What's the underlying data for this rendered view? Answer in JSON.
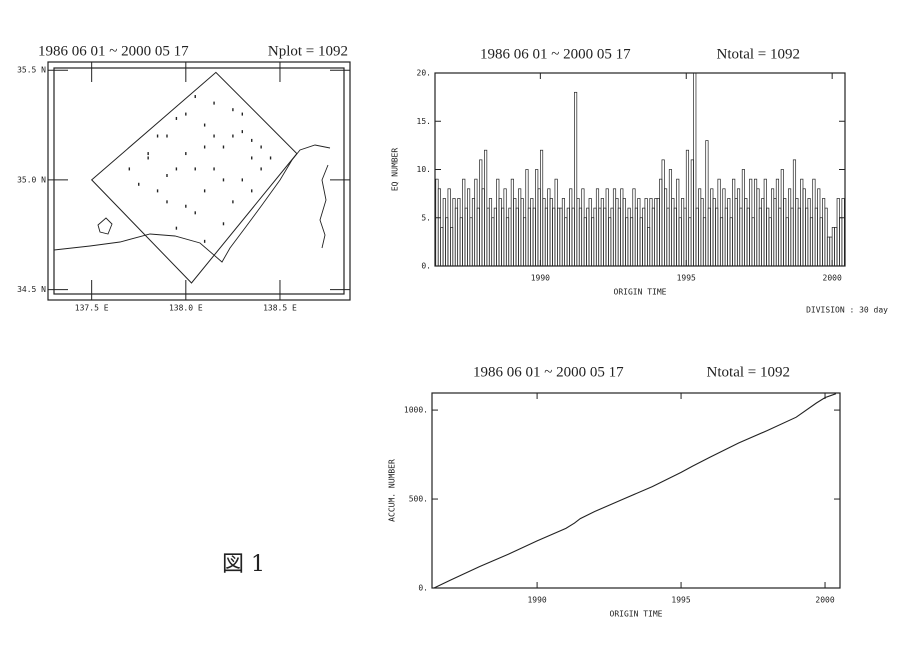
{
  "caption": "図 1",
  "chart_data": [
    {
      "type": "map",
      "title": "1986 06 01 ~ 2000 05 17",
      "annotation": "Nplot = 1092",
      "xlim": [
        137.3,
        138.84
      ],
      "ylim": [
        34.48,
        35.51
      ],
      "xticks": [
        {
          "value": 137.5,
          "label": "137.5 E"
        },
        {
          "value": 138.0,
          "label": "138.0 E"
        },
        {
          "value": 138.5,
          "label": "138.5 E"
        }
      ],
      "yticks": [
        {
          "value": 35.5,
          "label": "35.5 N"
        },
        {
          "value": 35.0,
          "label": "35.0 N"
        },
        {
          "value": 34.5,
          "label": "34.5 N"
        }
      ],
      "color": "#222222",
      "x": [
        137.7,
        137.8,
        137.85,
        137.9,
        137.95,
        138.0,
        138.05,
        138.1,
        138.15,
        138.2,
        138.25,
        138.3,
        138.35,
        138.4,
        137.75,
        137.85,
        137.95,
        138.05,
        138.15,
        138.25,
        138.35,
        138.45,
        137.9,
        138.0,
        138.1,
        138.2,
        138.3,
        137.8,
        137.95,
        138.1,
        138.25,
        138.4,
        138.0,
        138.15,
        138.3,
        138.05,
        138.2,
        137.9,
        138.1,
        138.35
      ],
      "y": [
        35.05,
        35.12,
        34.95,
        35.2,
        35.05,
        35.3,
        34.85,
        35.15,
        35.35,
        35.0,
        34.9,
        35.22,
        35.1,
        35.05,
        34.98,
        35.2,
        34.78,
        35.05,
        35.2,
        35.32,
        34.95,
        35.1,
        34.9,
        35.12,
        34.72,
        35.15,
        35.0,
        35.1,
        35.28,
        34.95,
        35.2,
        35.15,
        34.88,
        35.05,
        35.3,
        35.38,
        34.8,
        35.02,
        35.25,
        35.18
      ]
    },
    {
      "type": "histogram",
      "title": "1986 06 01 ~ 2000 05 17",
      "annotation": "Ntotal = 1092",
      "note": "DIVISION : 30 day",
      "xlabel": "ORIGIN TIME",
      "ylabel": "EQ NUMBER",
      "color": "#222222",
      "xlim": [
        1986.39,
        2000.44
      ],
      "ylim": [
        0,
        20
      ],
      "xticks": [
        1990,
        1995,
        2000
      ],
      "yticks": [
        {
          "value": 0,
          "label": "0."
        },
        {
          "value": 5,
          "label": "5."
        },
        {
          "value": 10,
          "label": "10."
        },
        {
          "value": 15,
          "label": "15."
        },
        {
          "value": 20,
          "label": "20."
        }
      ],
      "bins": [
        1986.417,
        1986.5,
        1986.583,
        1986.667,
        1986.75,
        1986.833,
        1986.917,
        1987,
        1987.083,
        1987.167,
        1987.25,
        1987.333,
        1987.417,
        1987.5,
        1987.583,
        1987.667,
        1987.75,
        1987.833,
        1987.917,
        1988,
        1988.083,
        1988.167,
        1988.25,
        1988.333,
        1988.417,
        1988.5,
        1988.583,
        1988.667,
        1988.75,
        1988.833,
        1988.917,
        1989,
        1989.083,
        1989.167,
        1989.25,
        1989.333,
        1989.417,
        1989.5,
        1989.583,
        1989.667,
        1989.75,
        1989.833,
        1989.917,
        1990,
        1990.083,
        1990.167,
        1990.25,
        1990.333,
        1990.417,
        1990.5,
        1990.583,
        1990.667,
        1990.75,
        1990.833,
        1990.917,
        1991,
        1991.083,
        1991.167,
        1991.25,
        1991.333,
        1991.417,
        1991.5,
        1991.583,
        1991.667,
        1991.75,
        1991.833,
        1991.917,
        1992,
        1992.083,
        1992.167,
        1992.25,
        1992.333,
        1992.417,
        1992.5,
        1992.583,
        1992.667,
        1992.75,
        1992.833,
        1992.917,
        1993,
        1993.083,
        1993.167,
        1993.25,
        1993.333,
        1993.417,
        1993.5,
        1993.583,
        1993.667,
        1993.75,
        1993.833,
        1993.917,
        1994,
        1994.083,
        1994.167,
        1994.25,
        1994.333,
        1994.417,
        1994.5,
        1994.583,
        1994.667,
        1994.75,
        1994.833,
        1994.917,
        1995,
        1995.083,
        1995.167,
        1995.25,
        1995.333,
        1995.417,
        1995.5,
        1995.583,
        1995.667,
        1995.75,
        1995.833,
        1995.917,
        1996,
        1996.083,
        1996.167,
        1996.25,
        1996.333,
        1996.417,
        1996.5,
        1996.583,
        1996.667,
        1996.75,
        1996.833,
        1996.917,
        1997,
        1997.083,
        1997.167,
        1997.25,
        1997.333,
        1997.417,
        1997.5,
        1997.583,
        1997.667,
        1997.75,
        1997.833,
        1997.917,
        1998,
        1998.083,
        1998.167,
        1998.25,
        1998.333,
        1998.417,
        1998.5,
        1998.583,
        1998.667,
        1998.75,
        1998.833,
        1998.917,
        1999,
        1999.083,
        1999.167,
        1999.25,
        1999.333,
        1999.417,
        1999.5,
        1999.583,
        1999.667,
        1999.75,
        1999.833,
        1999.917,
        2000,
        2000.083,
        2000.167,
        2000.25,
        2000.333,
        2000.417
      ],
      "values": [
        9,
        8,
        4,
        7,
        5,
        8,
        4,
        7,
        6,
        7,
        5,
        9,
        6,
        8,
        5,
        7,
        9,
        6,
        11,
        8,
        12,
        6,
        7,
        5,
        6,
        9,
        7,
        6,
        8,
        5,
        6,
        9,
        7,
        6,
        8,
        7,
        5,
        10,
        6,
        7,
        6,
        10,
        8,
        12,
        7,
        6,
        8,
        7,
        6,
        9,
        6,
        6,
        7,
        5,
        6,
        8,
        6,
        18,
        7,
        6,
        8,
        5,
        6,
        7,
        5,
        6,
        8,
        6,
        7,
        6,
        8,
        5,
        6,
        8,
        7,
        6,
        8,
        7,
        5,
        6,
        5,
        8,
        6,
        7,
        5,
        6,
        7,
        4,
        7,
        6,
        7,
        7,
        9,
        11,
        8,
        6,
        10,
        7,
        6,
        9,
        5,
        7,
        6,
        12,
        5,
        11,
        20,
        6,
        8,
        7,
        5,
        13,
        6,
        8,
        7,
        6,
        9,
        5,
        8,
        6,
        7,
        5,
        9,
        7,
        8,
        6,
        10,
        7,
        6,
        9,
        5,
        9,
        8,
        6,
        7,
        9,
        6,
        5,
        8,
        7,
        9,
        6,
        10,
        7,
        5,
        8,
        6,
        11,
        7,
        6,
        9,
        8,
        6,
        7,
        5,
        9,
        6,
        8,
        5,
        7,
        6,
        3,
        3,
        4,
        4,
        7,
        5,
        7
      ]
    },
    {
      "type": "line",
      "title": "1986 06 01 ~ 2000 05 17",
      "annotation": "Ntotal = 1092",
      "xlabel": "ORIGIN TIME",
      "ylabel": "ACCUM. NUMBER",
      "color": "#222222",
      "xlim": [
        1986.35,
        2000.52
      ],
      "ylim": [
        0,
        1096
      ],
      "xticks": [
        1990,
        1995,
        2000
      ],
      "yticks": [
        {
          "value": 0,
          "label": "0."
        },
        {
          "value": 500,
          "label": "500."
        },
        {
          "value": 1000,
          "label": "1000."
        }
      ],
      "x": [
        1986.42,
        1987,
        1988,
        1989,
        1990,
        1991,
        1991.3,
        1991.5,
        1992,
        1993,
        1994,
        1995,
        1995.4,
        1996,
        1997,
        1998,
        1999,
        1999.7,
        2000,
        2000.38
      ],
      "values": [
        0,
        45,
        120,
        190,
        265,
        335,
        365,
        390,
        430,
        500,
        570,
        650,
        685,
        735,
        815,
        885,
        960,
        1040,
        1070,
        1092
      ]
    }
  ]
}
